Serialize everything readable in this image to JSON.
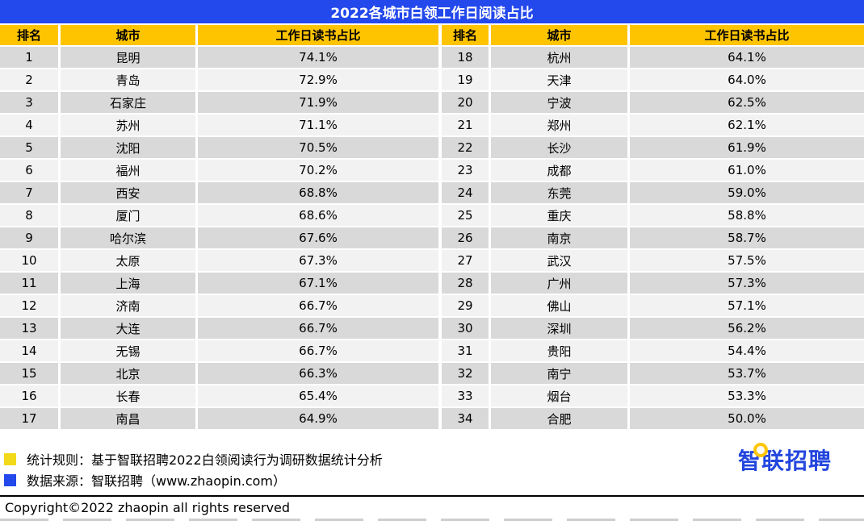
{
  "title": "2022各城市白领工作日阅读占比",
  "table_headers": [
    "排名",
    "城市",
    "工作日读书占比"
  ],
  "chart_data": {
    "type": "table",
    "title": "2022各城市白领工作日阅读占比",
    "columns": [
      "排名",
      "城市",
      "工作日读书占比"
    ],
    "rows": [
      [
        1,
        "昆明",
        "74.1%"
      ],
      [
        2,
        "青岛",
        "72.9%"
      ],
      [
        3,
        "石家庄",
        "71.9%"
      ],
      [
        4,
        "苏州",
        "71.1%"
      ],
      [
        5,
        "沈阳",
        "70.5%"
      ],
      [
        6,
        "福州",
        "70.2%"
      ],
      [
        7,
        "西安",
        "68.8%"
      ],
      [
        8,
        "厦门",
        "68.6%"
      ],
      [
        9,
        "哈尔滨",
        "67.6%"
      ],
      [
        10,
        "太原",
        "67.3%"
      ],
      [
        11,
        "上海",
        "67.1%"
      ],
      [
        12,
        "济南",
        "66.7%"
      ],
      [
        13,
        "大连",
        "66.7%"
      ],
      [
        14,
        "无锡",
        "66.7%"
      ],
      [
        15,
        "北京",
        "66.3%"
      ],
      [
        16,
        "长春",
        "65.4%"
      ],
      [
        17,
        "南昌",
        "64.9%"
      ],
      [
        18,
        "杭州",
        "64.1%"
      ],
      [
        19,
        "天津",
        "64.0%"
      ],
      [
        20,
        "宁波",
        "62.5%"
      ],
      [
        21,
        "郑州",
        "62.1%"
      ],
      [
        22,
        "长沙",
        "61.9%"
      ],
      [
        23,
        "成都",
        "61.0%"
      ],
      [
        24,
        "东莞",
        "59.0%"
      ],
      [
        25,
        "重庆",
        "58.8%"
      ],
      [
        26,
        "南京",
        "58.7%"
      ],
      [
        27,
        "武汉",
        "57.5%"
      ],
      [
        28,
        "广州",
        "57.3%"
      ],
      [
        29,
        "佛山",
        "57.1%"
      ],
      [
        30,
        "深圳",
        "56.2%"
      ],
      [
        31,
        "贵阳",
        "54.4%"
      ],
      [
        32,
        "南宁",
        "53.7%"
      ],
      [
        33,
        "烟台",
        "53.3%"
      ],
      [
        34,
        "合肥",
        "50.0%"
      ]
    ]
  },
  "legend": {
    "items": [
      {
        "swatch_color": "#f2da1a",
        "label": "统计规则：基于智联招聘2022白领阅读行为调研数据统计分析"
      },
      {
        "swatch_color": "#2348ec",
        "label": "数据来源：智联招聘（www.zhaopin.com）"
      }
    ]
  },
  "logo": {
    "text": "智联招聘"
  },
  "copyright": "Copyright©2022 zhaopin all rights reserved",
  "colors": {
    "title_bar": "#2348ec",
    "header_row": "#ffc400",
    "row_dark": "#d9d9d9",
    "row_light": "#f2f2f2",
    "logo_blue": "#2346de",
    "logo_circle_yellow": "#ffc60a"
  }
}
